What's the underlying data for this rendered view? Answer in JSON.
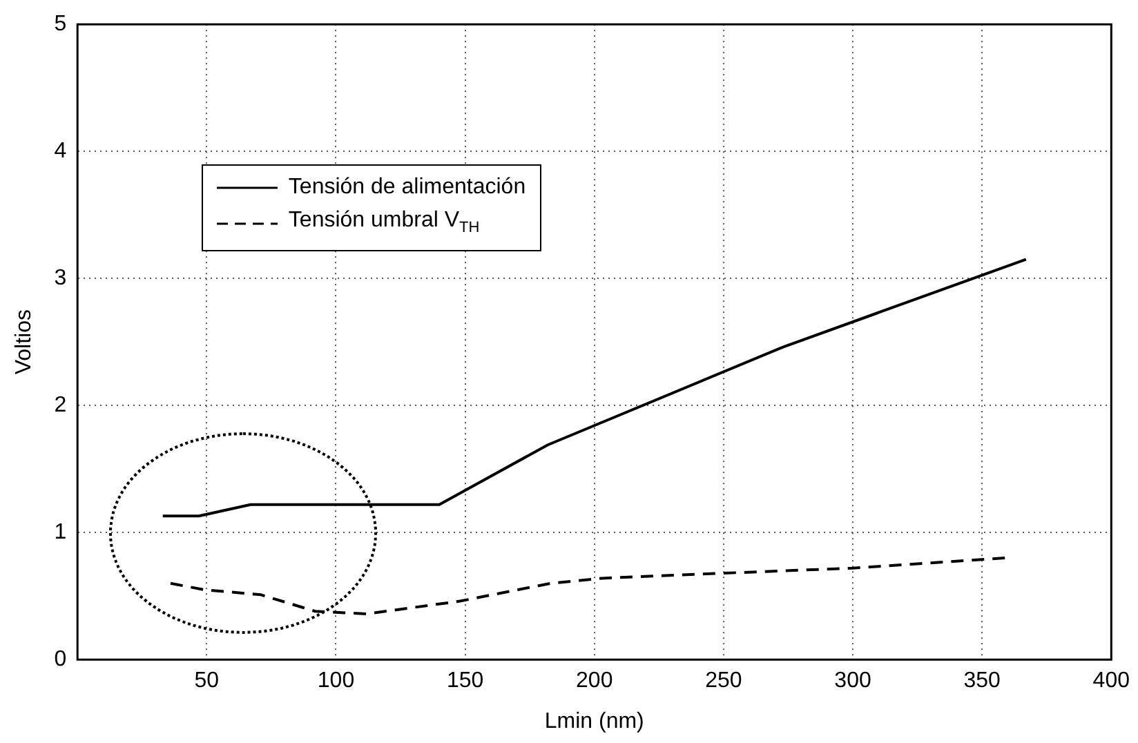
{
  "chart_data": {
    "type": "line",
    "xlabel": "Lmin (nm)",
    "ylabel": "Voltios",
    "xlim": [
      0,
      400
    ],
    "xticks": [
      {
        "value": 0,
        "label": null
      },
      50,
      100,
      150,
      200,
      250,
      300,
      350,
      400
    ],
    "ylim": [
      0,
      5
    ],
    "yticks": [
      0,
      1,
      2,
      3,
      4,
      5
    ],
    "grid": true,
    "legend": "top left",
    "marker": "none",
    "series": [
      {
        "name": "Tensión de alimentación",
        "color": "#000000",
        "line_style": "solid",
        "x": [
          33,
          47,
          67,
          140,
          182,
          273,
          367
        ],
        "values": [
          1.13,
          1.13,
          1.22,
          1.22,
          1.69,
          2.46,
          3.15
        ]
      },
      {
        "name": "Tensión umbral V$_{TH}$",
        "color": "#000000",
        "line_style": "dashed",
        "x": [
          36,
          49,
          71,
          92,
          112,
          148,
          183,
          203,
          250,
          300,
          359
        ],
        "values": [
          0.6,
          0.55,
          0.51,
          0.38,
          0.36,
          0.46,
          0.6,
          0.64,
          0.68,
          0.72,
          0.8
        ]
      }
    ]
  }
}
